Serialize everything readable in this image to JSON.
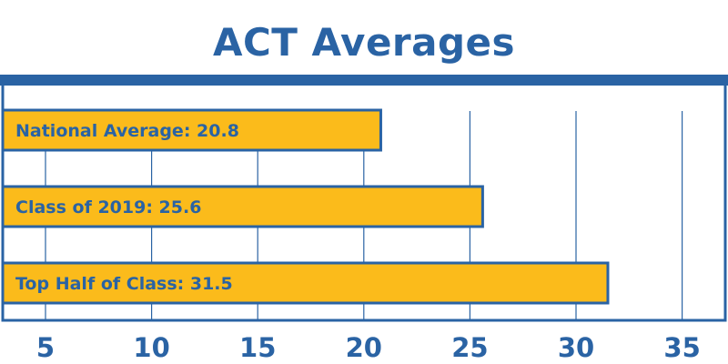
{
  "chart_data": {
    "type": "bar",
    "orientation": "horizontal",
    "title": "ACT Averages",
    "categories": [
      "National Average",
      "Class of 2019",
      "Top Half of Class"
    ],
    "values": [
      20.8,
      25.6,
      31.5
    ],
    "bar_labels": [
      "National Average: 20.8",
      "Class of 2019: 25.6",
      "Top Half of Class: 31.5"
    ],
    "xticks": [
      5,
      10,
      15,
      20,
      25,
      30,
      35
    ],
    "xlim": [
      3,
      37
    ],
    "grid": "vertical",
    "colors": {
      "bar_fill": "#fbbb1b",
      "accent": "#2a63a4"
    }
  }
}
